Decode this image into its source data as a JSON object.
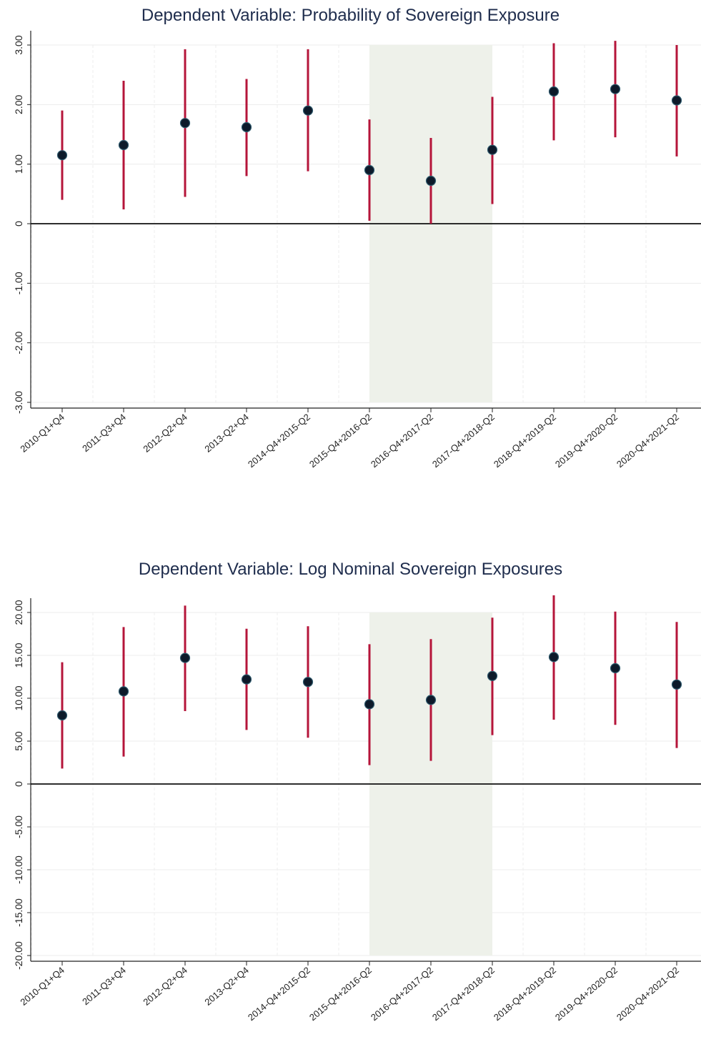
{
  "chart_data": [
    {
      "type": "scatter",
      "title": "Dependent Variable: Probability of Sovereign Exposure",
      "categories": [
        "2010-Q1+Q4",
        "2011-Q3+Q4",
        "2012-Q2+Q4",
        "2013-Q2+Q4",
        "2014-Q4+2015-Q2",
        "2015-Q4+2016-Q2",
        "2016-Q4+2017-Q2",
        "2017-Q4+2018-Q2",
        "2018-Q4+2019-Q2",
        "2019-Q4+2020-Q2",
        "2020-Q4+2021-Q2"
      ],
      "series": [
        {
          "values": [
            1.15,
            1.32,
            1.69,
            1.62,
            1.9,
            0.9,
            0.72,
            1.24,
            2.22,
            2.26,
            2.07
          ],
          "ci_low": [
            0.4,
            0.24,
            0.45,
            0.8,
            0.88,
            0.05,
            0.0,
            0.33,
            1.4,
            1.45,
            1.13
          ],
          "ci_high": [
            1.9,
            2.4,
            2.93,
            2.43,
            2.93,
            1.75,
            1.44,
            2.13,
            3.03,
            3.07,
            3.0
          ]
        }
      ],
      "ylim": [
        -3,
        3
      ],
      "yticks": [
        -3,
        -2,
        -1,
        0,
        1,
        2,
        3
      ],
      "ytick_labels": [
        "-3.00",
        "-2.00",
        "-1.00",
        "0",
        "1.00",
        "2.00",
        "3.00"
      ],
      "shaded_region": {
        "from_category": "2015-Q4+2016-Q2",
        "to_category": "2017-Q4+2018-Q2",
        "ymin": -3,
        "ymax": 3
      },
      "grid": true,
      "colors": {
        "point": "#0d1a2a",
        "ci": "#b5153a",
        "shade": "#eef1ea",
        "grid": "#ececec"
      }
    },
    {
      "type": "scatter",
      "title": "Dependent Variable: Log Nominal Sovereign Exposures",
      "categories": [
        "2010-Q1+Q4",
        "2011-Q3+Q4",
        "2012-Q2+Q4",
        "2013-Q2+Q4",
        "2014-Q4+2015-Q2",
        "2015-Q4+2016-Q2",
        "2016-Q4+2017-Q2",
        "2017-Q4+2018-Q2",
        "2018-Q4+2019-Q2",
        "2019-Q4+2020-Q2",
        "2020-Q4+2021-Q2"
      ],
      "series": [
        {
          "values": [
            8.0,
            10.8,
            14.7,
            12.2,
            11.9,
            9.3,
            9.8,
            12.6,
            14.8,
            13.5,
            11.6
          ],
          "ci_low": [
            1.8,
            3.2,
            8.5,
            6.3,
            5.4,
            2.2,
            2.7,
            5.7,
            7.5,
            6.9,
            4.2
          ],
          "ci_high": [
            14.2,
            18.3,
            20.8,
            18.1,
            18.4,
            16.3,
            16.9,
            19.4,
            22.0,
            20.1,
            18.9
          ]
        }
      ],
      "ylim": [
        -20,
        20
      ],
      "yticks": [
        -20,
        -15,
        -10,
        -5,
        0,
        5,
        10,
        15,
        20
      ],
      "ytick_labels": [
        "-20.00",
        "-15.00",
        "-10.00",
        "-5.00",
        "0",
        "5.00",
        "10.00",
        "15.00",
        "20.00"
      ],
      "shaded_region": {
        "from_category": "2015-Q4+2016-Q2",
        "to_category": "2017-Q4+2018-Q2",
        "ymin": -20,
        "ymax": 20
      },
      "grid": true,
      "colors": {
        "point": "#0d1a2a",
        "ci": "#b5153a",
        "shade": "#eef1ea",
        "grid": "#ececec"
      }
    }
  ]
}
